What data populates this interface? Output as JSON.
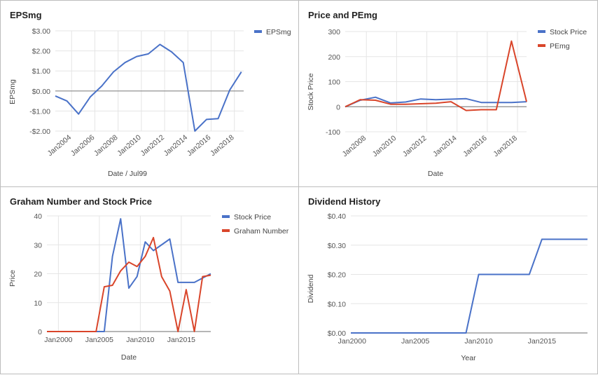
{
  "colors": {
    "blue": "#4a72c8",
    "red": "#d9452a",
    "grid": "#e5e5e5",
    "axis": "#8a8a8a",
    "text": "#555555"
  },
  "chart_data": [
    {
      "type": "line",
      "title": "EPSmg",
      "xlabel": "Date / Jul99",
      "ylabel": "EPSmg",
      "xlim": [
        2002.6,
        2018.8
      ],
      "ylim": [
        -2,
        3
      ],
      "yticks": [
        3,
        2,
        1,
        0,
        -1,
        -2
      ],
      "ytick_labels": [
        "$3.00",
        "$2.00",
        "$1.00",
        "$0.00",
        "-$1.00",
        "-$2.00"
      ],
      "xticks": [
        2004,
        2006,
        2008,
        2010,
        2012,
        2014,
        2016,
        2018
      ],
      "xtick_labels": [
        "Jan2004",
        "Jan2006",
        "Jan2008",
        "Jan2010",
        "Jan2012",
        "Jan2014",
        "Jan2016",
        "Jan2018"
      ],
      "x_rotated": true,
      "grid": "vertical",
      "legend": "top-right",
      "series": [
        {
          "name": "EPSmg",
          "color": "blue",
          "x": [
            2002.6,
            2003.6,
            2004.6,
            2005.6,
            2006.6,
            2007.6,
            2008.6,
            2009.6,
            2010.6,
            2011.6,
            2012.6,
            2013.6,
            2014.6,
            2015.6,
            2016.6,
            2017.6,
            2018.6
          ],
          "y": [
            -0.25,
            -0.5,
            -1.15,
            -0.3,
            0.25,
            0.95,
            1.42,
            1.72,
            1.85,
            2.32,
            1.95,
            1.42,
            -2.0,
            -1.42,
            -1.38,
            0.05,
            0.95
          ]
        }
      ]
    },
    {
      "type": "line",
      "title": "Price and PEmg",
      "xlabel": "Date",
      "ylabel": "Stock Price",
      "xlim": [
        2006.6,
        2018.6
      ],
      "ylim": [
        -100,
        300
      ],
      "yticks": [
        300,
        200,
        100,
        0,
        -100
      ],
      "ytick_labels": [
        "300",
        "200",
        "100",
        "0",
        "-100"
      ],
      "xticks": [
        2008,
        2010,
        2012,
        2014,
        2016,
        2018
      ],
      "xtick_labels": [
        "Jan2008",
        "Jan2010",
        "Jan2012",
        "Jan2014",
        "Jan2016",
        "Jan2018"
      ],
      "x_rotated": true,
      "grid": "vertical",
      "legend": "top-right",
      "series": [
        {
          "name": "Stock Price",
          "color": "blue",
          "x": [
            2006.6,
            2007.6,
            2008.6,
            2009.6,
            2010.6,
            2011.6,
            2012.6,
            2013.6,
            2014.6,
            2015.6,
            2016.6,
            2017.6,
            2018.6
          ],
          "y": [
            0,
            26,
            38,
            15,
            19,
            31,
            28,
            30,
            32,
            17,
            17,
            17,
            20
          ]
        },
        {
          "name": "PEmg",
          "color": "red",
          "x": [
            2006.6,
            2007.6,
            2008.6,
            2009.6,
            2010.6,
            2011.6,
            2012.6,
            2013.6,
            2014.6,
            2015.6,
            2016.6,
            2017.6,
            2018.6
          ],
          "y": [
            0,
            28,
            26,
            10,
            10,
            12,
            14,
            20,
            -15,
            -12,
            -12,
            262,
            20
          ]
        }
      ]
    },
    {
      "type": "line",
      "title": "Graham Number and Stock Price",
      "xlabel": "Date",
      "ylabel": "Price",
      "xlim": [
        1998.6,
        2018.6
      ],
      "ylim": [
        0,
        40
      ],
      "yticks": [
        40,
        30,
        20,
        10,
        0
      ],
      "ytick_labels": [
        "40",
        "30",
        "20",
        "10",
        "0"
      ],
      "xticks": [
        2000,
        2005,
        2010,
        2015
      ],
      "xtick_labels": [
        "Jan2000",
        "Jan2005",
        "Jan2010",
        "Jan2015"
      ],
      "x_rotated": false,
      "grid": "vertical",
      "legend": "top-right",
      "series": [
        {
          "name": "Stock Price",
          "color": "blue",
          "x": [
            1998.6,
            2005.6,
            2006.6,
            2007.6,
            2008.6,
            2009.6,
            2010.6,
            2011.6,
            2013.6,
            2014.6,
            2016.6,
            2018.6
          ],
          "y": [
            0,
            0,
            26,
            39,
            15,
            19,
            31,
            28,
            32,
            17,
            17,
            20
          ]
        },
        {
          "name": "Graham Number",
          "color": "red",
          "x": [
            1998.6,
            2004.6,
            2005.6,
            2006.6,
            2007.6,
            2008.6,
            2009.6,
            2010.6,
            2011.6,
            2012.6,
            2013.6,
            2014.6,
            2015.6,
            2016.6,
            2017.6,
            2018.6
          ],
          "y": [
            0,
            0,
            15.5,
            16,
            21,
            24,
            22.5,
            26,
            32.5,
            19,
            14,
            0,
            14.5,
            0,
            19,
            19.5
          ]
        }
      ]
    },
    {
      "type": "line",
      "title": "Dividend History",
      "xlabel": "Year",
      "ylabel": "Dividend",
      "xlim": [
        1999.9,
        2018.6
      ],
      "ylim": [
        0,
        0.4
      ],
      "yticks": [
        0.4,
        0.3,
        0.2,
        0.1,
        0
      ],
      "ytick_labels": [
        "$0.40",
        "$0.30",
        "$0.20",
        "$0.10",
        "$0.00"
      ],
      "xticks": [
        2000,
        2005,
        2010,
        2015
      ],
      "xtick_labels": [
        "Jan2000",
        "Jan2005",
        "Jan2010",
        "Jan2015"
      ],
      "x_rotated": false,
      "grid": "horizontal",
      "legend": "none",
      "series": [
        {
          "name": "",
          "color": "blue",
          "x": [
            1999.9,
            2009.0,
            2010.0,
            2011.0,
            2012.0,
            2013.0,
            2014.0,
            2015.0,
            2016.0,
            2017.0,
            2018.6
          ],
          "y": [
            0,
            0,
            0.2,
            0.2,
            0.2,
            0.2,
            0.2,
            0.32,
            0.32,
            0.32,
            0.32
          ]
        }
      ]
    }
  ]
}
